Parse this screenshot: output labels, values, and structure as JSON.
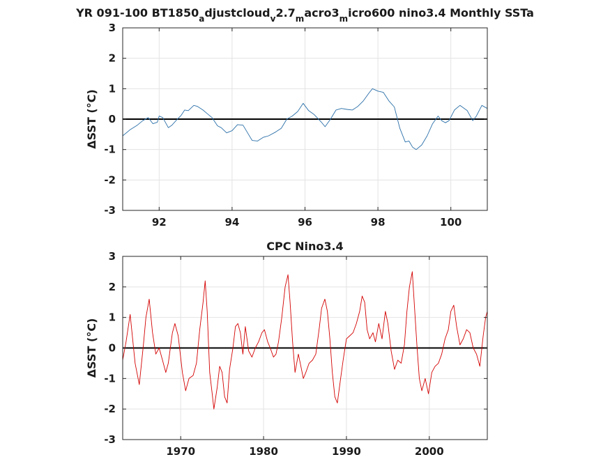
{
  "colors": {
    "model_line": "#2a6fa8",
    "obs_line": "#d40000",
    "zero_line": "#000000",
    "grid": "#e3e3e3",
    "axes": "#262626"
  },
  "chart_data": [
    {
      "type": "line",
      "title_parts": [
        {
          "text": "YR 091-100 BT1850",
          "sub": false
        },
        {
          "text": "a",
          "sub": true
        },
        {
          "text": "djustcloud",
          "sub": false
        },
        {
          "text": "v",
          "sub": true
        },
        {
          "text": "2.7",
          "sub": false
        },
        {
          "text": "m",
          "sub": true
        },
        {
          "text": "acro3",
          "sub": false
        },
        {
          "text": "m",
          "sub": true
        },
        {
          "text": "icro600 nino3.4 Monthly SSTa",
          "sub": false
        }
      ],
      "ylabel": "ΔSST (°C)",
      "xlim": [
        91.0,
        101.0
      ],
      "ylim": [
        -3,
        3
      ],
      "xticks": [
        92,
        94,
        96,
        98,
        100
      ],
      "xtick_labels": [
        "92",
        "94",
        "96",
        "98",
        "100"
      ],
      "yticks": [
        -3,
        -2,
        -1,
        0,
        1,
        2,
        3
      ],
      "ytick_labels": [
        "-3",
        "-2",
        "-1",
        "0",
        "1",
        "2",
        "3"
      ],
      "grid": true,
      "zero_line": true,
      "series": [
        {
          "x": [
            91.0,
            91.2,
            91.4,
            91.55,
            91.7,
            91.83,
            91.95,
            92.0,
            92.1,
            92.25,
            92.35,
            92.5,
            92.6,
            92.7,
            92.8,
            92.95,
            93.05,
            93.2,
            93.3,
            93.45,
            93.6,
            93.7,
            93.85,
            94.0,
            94.15,
            94.3,
            94.45,
            94.55,
            94.7,
            94.85,
            95.0,
            95.2,
            95.35,
            95.5,
            95.65,
            95.8,
            95.95,
            96.1,
            96.25,
            96.45,
            96.55,
            96.7,
            96.85,
            97.0,
            97.15,
            97.3,
            97.45,
            97.6,
            97.75,
            97.85,
            98.0,
            98.15,
            98.3,
            98.45,
            98.6,
            98.75,
            98.85,
            98.95,
            99.05,
            99.2,
            99.35,
            99.5,
            99.65,
            99.75,
            99.85,
            99.95,
            100.1,
            100.25,
            100.45,
            100.6,
            100.7,
            100.85,
            101.0
          ],
          "y": [
            -0.55,
            -0.35,
            -0.2,
            -0.05,
            0.05,
            -0.15,
            -0.1,
            0.1,
            0.05,
            -0.28,
            -0.2,
            0.0,
            0.12,
            0.3,
            0.28,
            0.45,
            0.42,
            0.3,
            0.2,
            0.05,
            -0.22,
            -0.28,
            -0.45,
            -0.38,
            -0.18,
            -0.2,
            -0.5,
            -0.7,
            -0.72,
            -0.6,
            -0.55,
            -0.42,
            -0.3,
            0.0,
            0.1,
            0.25,
            0.52,
            0.28,
            0.15,
            -0.1,
            -0.25,
            0.0,
            0.3,
            0.35,
            0.32,
            0.3,
            0.42,
            0.6,
            0.85,
            1.0,
            0.92,
            0.88,
            0.6,
            0.4,
            -0.3,
            -0.75,
            -0.72,
            -0.92,
            -1.0,
            -0.85,
            -0.55,
            -0.15,
            0.1,
            -0.05,
            -0.12,
            -0.05,
            0.3,
            0.45,
            0.28,
            -0.05,
            0.1,
            0.45,
            0.35
          ]
        }
      ]
    },
    {
      "type": "line",
      "title": "CPC Nino3.4",
      "ylabel": "ΔSST (°C)",
      "xlim": [
        1963,
        2007
      ],
      "ylim": [
        -3,
        3
      ],
      "xticks": [
        1970,
        1980,
        1990,
        2000
      ],
      "xtick_labels": [
        "1970",
        "1980",
        "1990",
        "2000"
      ],
      "yticks": [
        -3,
        -2,
        -1,
        0,
        1,
        2,
        3
      ],
      "ytick_labels": [
        "-3",
        "-2",
        "-1",
        "0",
        "1",
        "2",
        "3"
      ],
      "grid": true,
      "zero_line": true,
      "series": [
        {
          "x": [
            1963.0,
            1963.4,
            1963.9,
            1964.5,
            1965.0,
            1965.5,
            1965.8,
            1966.2,
            1966.6,
            1967.0,
            1967.4,
            1967.8,
            1968.2,
            1968.5,
            1969.0,
            1969.3,
            1969.7,
            1970.2,
            1970.6,
            1971.0,
            1971.5,
            1971.9,
            1972.3,
            1972.7,
            1972.95,
            1973.2,
            1973.5,
            1973.8,
            1974.0,
            1974.4,
            1974.7,
            1975.0,
            1975.3,
            1975.6,
            1975.9,
            1976.3,
            1976.6,
            1976.9,
            1977.2,
            1977.5,
            1977.8,
            1978.2,
            1978.6,
            1979.0,
            1979.4,
            1979.8,
            1980.1,
            1980.5,
            1980.8,
            1981.2,
            1981.5,
            1981.8,
            1982.2,
            1982.6,
            1982.95,
            1983.2,
            1983.5,
            1983.8,
            1984.2,
            1984.5,
            1984.8,
            1985.1,
            1985.5,
            1985.9,
            1986.3,
            1986.7,
            1987.0,
            1987.4,
            1987.7,
            1988.0,
            1988.3,
            1988.6,
            1988.9,
            1989.3,
            1989.6,
            1990.0,
            1990.4,
            1990.8,
            1991.2,
            1991.6,
            1991.9,
            1992.2,
            1992.5,
            1992.8,
            1993.2,
            1993.5,
            1993.9,
            1994.3,
            1994.7,
            1995.0,
            1995.4,
            1995.8,
            1996.2,
            1996.6,
            1997.0,
            1997.3,
            1997.6,
            1997.95,
            1998.2,
            1998.5,
            1998.8,
            1999.1,
            1999.5,
            1999.9,
            2000.3,
            2000.7,
            2001.1,
            2001.5,
            2001.9,
            2002.3,
            2002.6,
            2002.95,
            2003.3,
            2003.7,
            2004.1,
            2004.5,
            2004.9,
            2005.3,
            2005.7,
            2006.1,
            2006.5,
            2006.8,
            2007.0
          ],
          "y": [
            -0.4,
            0.2,
            1.1,
            -0.5,
            -1.2,
            0.1,
            1.0,
            1.6,
            0.5,
            -0.2,
            0.0,
            -0.4,
            -0.8,
            -0.5,
            0.5,
            0.8,
            0.4,
            -0.8,
            -1.4,
            -1.0,
            -0.9,
            -0.5,
            0.6,
            1.5,
            2.2,
            1.2,
            -0.8,
            -1.5,
            -2.0,
            -1.3,
            -0.6,
            -0.8,
            -1.6,
            -1.8,
            -0.7,
            0.0,
            0.7,
            0.8,
            0.5,
            -0.2,
            0.7,
            -0.1,
            -0.3,
            0.0,
            0.2,
            0.5,
            0.6,
            0.2,
            0.0,
            -0.3,
            -0.2,
            0.2,
            1.0,
            2.0,
            2.4,
            1.5,
            0.2,
            -0.8,
            -0.2,
            -0.6,
            -1.0,
            -0.8,
            -0.5,
            -0.4,
            -0.2,
            0.6,
            1.3,
            1.6,
            1.2,
            0.3,
            -0.8,
            -1.6,
            -1.8,
            -1.0,
            -0.4,
            0.3,
            0.4,
            0.5,
            0.8,
            1.2,
            1.7,
            1.5,
            0.6,
            0.3,
            0.5,
            0.2,
            0.8,
            0.3,
            1.2,
            0.8,
            -0.1,
            -0.7,
            -0.4,
            -0.5,
            0.1,
            1.2,
            2.0,
            2.5,
            1.4,
            0.1,
            -1.0,
            -1.4,
            -1.0,
            -1.5,
            -0.8,
            -0.6,
            -0.5,
            -0.2,
            0.3,
            0.6,
            1.2,
            1.4,
            0.7,
            0.1,
            0.3,
            0.6,
            0.5,
            0.0,
            -0.2,
            -0.6,
            0.4,
            1.0,
            1.2
          ]
        }
      ]
    }
  ]
}
